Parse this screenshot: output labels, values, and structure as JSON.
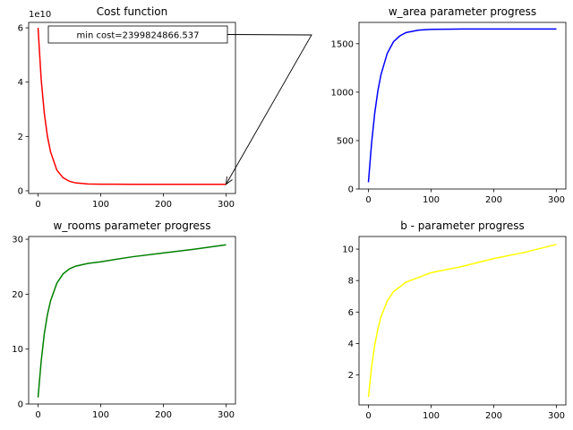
{
  "chart_data": [
    {
      "id": "cost",
      "type": "line",
      "title": "Cost function",
      "xlim": [
        -15,
        315
      ],
      "ylim": [
        -1000000000.0,
        62000000000.0
      ],
      "xticks": [
        0,
        100,
        200,
        300
      ],
      "yticks": [
        0,
        20000000000.0,
        40000000000.0,
        60000000000.0
      ],
      "ytick_labels": [
        "0",
        "2",
        "4",
        "6"
      ],
      "y_offset_label": "1e10",
      "xtick_labels": [
        "0",
        "100",
        "200",
        "300"
      ],
      "series": [
        {
          "color": "#ff0000",
          "x": [
            0,
            5,
            10,
            15,
            20,
            30,
            40,
            50,
            60,
            80,
            100,
            150,
            200,
            250,
            300
          ],
          "values": [
            60000000000.0,
            41000000000.0,
            28500000000.0,
            20000000000.0,
            14300000000.0,
            7600000000.0,
            4800000000.0,
            3500000000.0,
            2900000000.0,
            2500000000.0,
            2420000000.0,
            2400000000.0,
            2400000000.0,
            2400000000.0,
            2399800000.0
          ]
        }
      ],
      "annotation": {
        "text": "min cost=2399824866.537",
        "x": 300,
        "y": 2399824866.537
      }
    },
    {
      "id": "w_area",
      "type": "line",
      "title": "w_area parameter progress",
      "xlim": [
        -15,
        315
      ],
      "ylim": [
        0,
        1720
      ],
      "xticks": [
        0,
        100,
        200,
        300
      ],
      "xtick_labels": [
        "0",
        "100",
        "200",
        "300"
      ],
      "yticks": [
        0,
        500,
        1000,
        1500
      ],
      "ytick_labels": [
        "0",
        "500",
        "1000",
        "1500"
      ],
      "series": [
        {
          "color": "#0000ff",
          "x": [
            0,
            5,
            10,
            15,
            20,
            30,
            40,
            50,
            60,
            80,
            100,
            150,
            200,
            250,
            300
          ],
          "values": [
            70,
            470,
            780,
            1010,
            1180,
            1400,
            1520,
            1580,
            1615,
            1640,
            1648,
            1652,
            1652,
            1652,
            1652
          ]
        }
      ]
    },
    {
      "id": "w_rooms",
      "type": "line",
      "title": "w_rooms parameter progress",
      "xlim": [
        -15,
        315
      ],
      "ylim": [
        0,
        30.5
      ],
      "xticks": [
        0,
        100,
        200,
        300
      ],
      "xtick_labels": [
        "0",
        "100",
        "200",
        "300"
      ],
      "yticks": [
        0,
        10,
        20,
        30
      ],
      "ytick_labels": [
        "0",
        "10",
        "20",
        "30"
      ],
      "series": [
        {
          "color": "#008000",
          "x": [
            0,
            5,
            10,
            15,
            20,
            30,
            40,
            50,
            60,
            80,
            100,
            150,
            200,
            250,
            300
          ],
          "values": [
            1.2,
            7.8,
            12.8,
            16.3,
            18.8,
            22.0,
            23.7,
            24.6,
            25.1,
            25.6,
            25.9,
            26.8,
            27.5,
            28.2,
            29.0
          ]
        }
      ]
    },
    {
      "id": "b",
      "type": "line",
      "title": "b - parameter progress",
      "xlim": [
        -15,
        315
      ],
      "ylim": [
        0.1,
        10.8
      ],
      "xticks": [
        0,
        100,
        200,
        300
      ],
      "xtick_labels": [
        "0",
        "100",
        "200",
        "300"
      ],
      "yticks": [
        2,
        4,
        6,
        8,
        10
      ],
      "ytick_labels": [
        "2",
        "4",
        "6",
        "8",
        "10"
      ],
      "series": [
        {
          "color": "#ffff00",
          "x": [
            0,
            5,
            10,
            15,
            20,
            30,
            40,
            50,
            60,
            80,
            100,
            150,
            200,
            250,
            300
          ],
          "values": [
            0.6,
            2.5,
            3.9,
            4.9,
            5.7,
            6.7,
            7.3,
            7.6,
            7.9,
            8.2,
            8.5,
            8.9,
            9.4,
            9.8,
            10.3
          ]
        }
      ]
    }
  ]
}
